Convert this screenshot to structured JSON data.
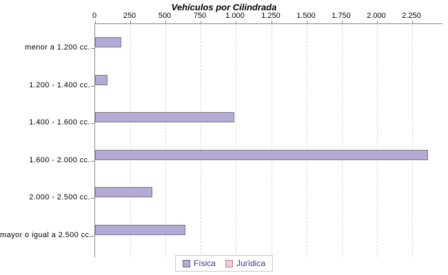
{
  "chart_data": {
    "type": "bar",
    "orientation": "horizontal",
    "title": "Vehículos por Cilindrada",
    "categories": [
      "menor a 1.200 cc.",
      "1.200 - 1.400 cc.",
      "1.400 - 1.600 cc.",
      "1.600 - 2.000 cc.",
      "2.000 - 2.500 cc.",
      "mayor o igual a 2.500 cc."
    ],
    "series": [
      {
        "name": "Física",
        "color": "#b3aad6",
        "border_color": "#7b7b7b",
        "swatch_border_color": "#6b6b8f",
        "values": [
          185,
          90,
          990,
          2360,
          405,
          640
        ]
      },
      {
        "name": "Jurídica",
        "color": "#f7c9c9",
        "border_color": "#9a9a9a",
        "swatch_border_color": "#9a9a9a",
        "values": [
          0,
          0,
          0,
          0,
          0,
          0
        ]
      }
    ],
    "axis": {
      "min": 0,
      "max": 2465,
      "ticks": [
        0,
        250,
        500,
        750,
        1000,
        1250,
        1500,
        1750,
        2000,
        2250
      ],
      "tick_labels": [
        "0",
        "250",
        "500",
        "750",
        "1.000",
        "1.250",
        "1.500",
        "1.750",
        "2.000",
        "2.250"
      ]
    },
    "grid": {
      "vertical_dashed": true,
      "color": "#d9d9d9"
    },
    "legend_position": "bottom",
    "style": {
      "background": "#ffffff",
      "axis_line_color": "#888888",
      "legend_text_color": "#333399",
      "legend_border_color": "#c8c8c8",
      "text_color": "#000000"
    }
  }
}
